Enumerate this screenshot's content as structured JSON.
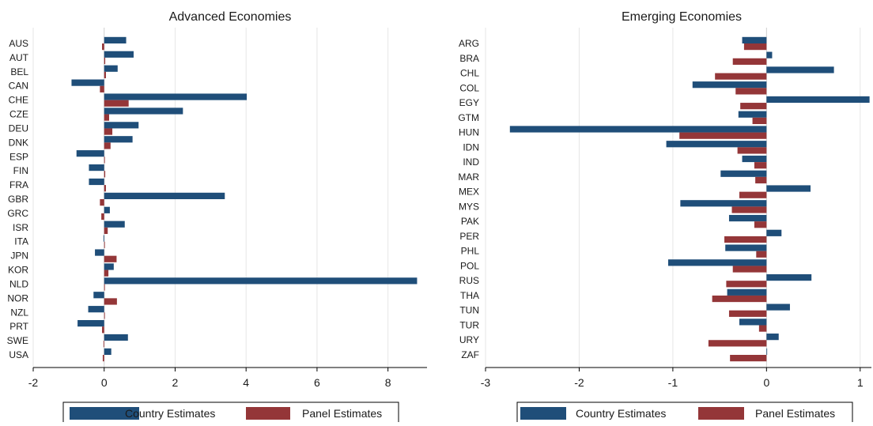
{
  "colors": {
    "country": "#1F4E79",
    "panel": "#943638",
    "grid": "#e6e6e6",
    "axis": "#000000"
  },
  "chart_data": [
    {
      "type": "bar",
      "orientation": "horizontal",
      "title": "Advanced Economies",
      "categories": [
        "AUS",
        "AUT",
        "BEL",
        "CAN",
        "CHE",
        "CZE",
        "DEU",
        "DNK",
        "ESP",
        "FIN",
        "FRA",
        "GBR",
        "GRC",
        "ISR",
        "ITA",
        "JPN",
        "KOR",
        "NLD",
        "NOR",
        "NZL",
        "PRT",
        "SWE",
        "USA"
      ],
      "series": [
        {
          "name": "Country Estimates",
          "color": "#1F4E79",
          "values": [
            0.62,
            0.83,
            0.38,
            -0.92,
            4.02,
            2.22,
            0.97,
            0.8,
            -0.78,
            -0.43,
            -0.43,
            3.4,
            0.16,
            0.58,
            -0.02,
            -0.26,
            0.27,
            8.82,
            -0.3,
            -0.45,
            -0.75,
            0.67,
            0.2
          ]
        },
        {
          "name": "Panel Estimates",
          "color": "#943638",
          "values": [
            -0.06,
            0.03,
            0.05,
            -0.12,
            0.69,
            0.14,
            0.23,
            0.18,
            0.02,
            0.03,
            0.05,
            -0.12,
            -0.08,
            0.1,
            0.02,
            0.35,
            0.12,
            0.02,
            0.36,
            0.02,
            -0.06,
            -0.02,
            -0.04
          ]
        }
      ],
      "xticks": [
        -2,
        0,
        2,
        4,
        6,
        8
      ],
      "xlim": [
        -2.0,
        9.1
      ],
      "grid": true,
      "legend_position": "bottom"
    },
    {
      "type": "bar",
      "orientation": "horizontal",
      "title": "Emerging Economies",
      "categories": [
        "ARG",
        "BRA",
        "CHL",
        "COL",
        "EGY",
        "GTM",
        "HUN",
        "IDN",
        "IND",
        "MAR",
        "MEX",
        "MYS",
        "PAK",
        "PER",
        "PHL",
        "POL",
        "RUS",
        "THA",
        "TUN",
        "TUR",
        "URY",
        "ZAF"
      ],
      "series": [
        {
          "name": "Country Estimates",
          "color": "#1F4E79",
          "values": [
            -0.26,
            0.06,
            0.72,
            -0.79,
            1.1,
            -0.3,
            -2.74,
            -1.07,
            -0.26,
            -0.49,
            0.47,
            -0.92,
            -0.4,
            0.16,
            -0.44,
            -1.05,
            0.48,
            -0.42,
            0.25,
            -0.29,
            0.13,
            0.0
          ]
        },
        {
          "name": "Panel Estimates",
          "color": "#943638",
          "values": [
            -0.24,
            -0.36,
            -0.55,
            -0.33,
            -0.28,
            -0.15,
            -0.93,
            -0.31,
            -0.13,
            -0.12,
            -0.29,
            -0.37,
            -0.13,
            -0.45,
            -0.11,
            -0.36,
            -0.43,
            -0.58,
            -0.4,
            -0.08,
            -0.62,
            -0.39
          ]
        }
      ],
      "xticks": [
        -3,
        -2,
        -1,
        0,
        1
      ],
      "xlim": [
        -3.0,
        1.12
      ],
      "grid": true,
      "legend_position": "bottom"
    }
  ]
}
